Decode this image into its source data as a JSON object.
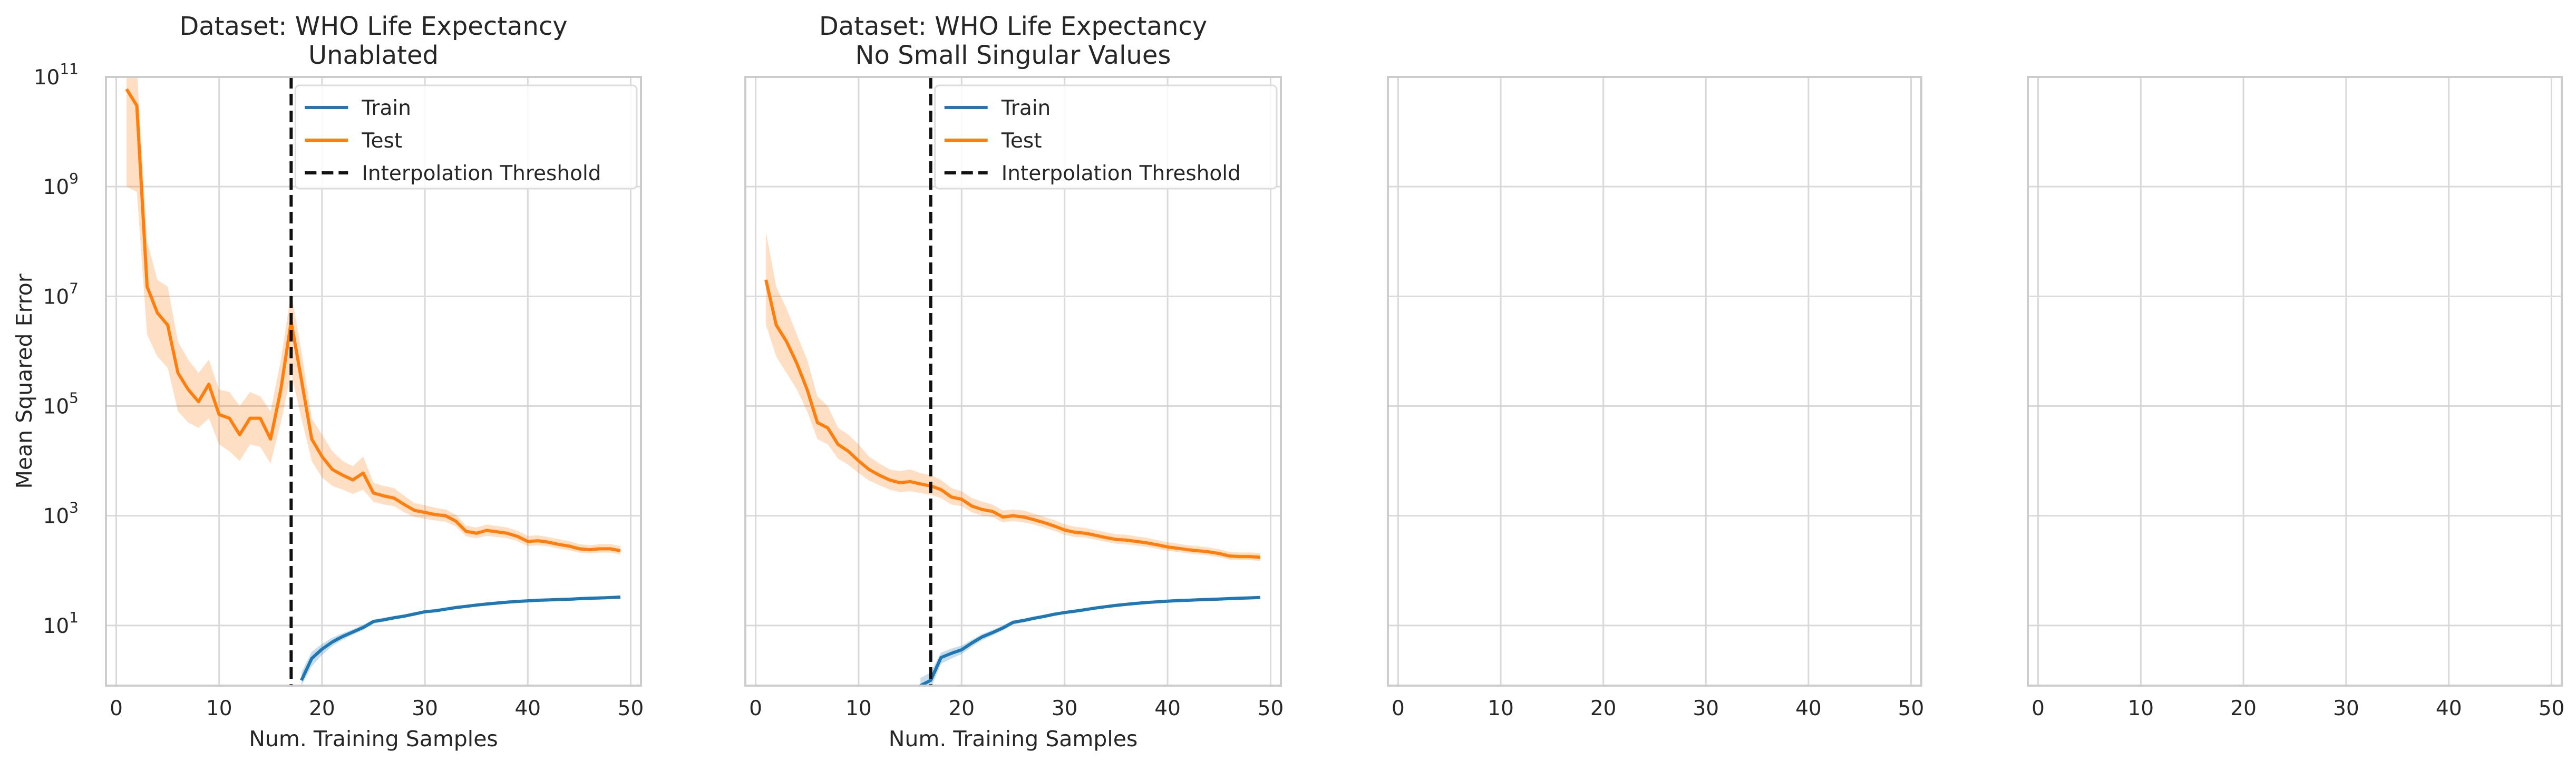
{
  "chart_data": [
    {
      "type": "line",
      "title": "Dataset: WHO Life Expectancy",
      "subtitle": "Unablated",
      "xlabel": "Num. Training Samples",
      "ylabel": "Mean Squared Error",
      "yscale": "log",
      "xlim": [
        -1,
        51
      ],
      "ylim": [
        0.8,
        100000000000
      ],
      "xticks": [
        "0",
        "10",
        "20",
        "30",
        "40",
        "50"
      ],
      "yticks": [
        {
          "base": "10",
          "exp": "1"
        },
        {
          "base": "10",
          "exp": "3"
        },
        {
          "base": "10",
          "exp": "5"
        },
        {
          "base": "10",
          "exp": "7"
        },
        {
          "base": "10",
          "exp": "9"
        },
        {
          "base": "10",
          "exp": "11"
        }
      ],
      "grid": true,
      "legend_position": "upper-right",
      "legend": [
        "Train",
        "Test",
        "Interpolation Threshold"
      ],
      "interpolation_threshold": 17,
      "series": [
        {
          "name": "Train",
          "color": "#1f77b4",
          "x": [
            18,
            19,
            20,
            21,
            22,
            23,
            24,
            25,
            26,
            27,
            28,
            29,
            30,
            31,
            32,
            33,
            34,
            35,
            36,
            37,
            38,
            39,
            40,
            41,
            42,
            43,
            44,
            45,
            46,
            47,
            48,
            49
          ],
          "y": [
            1.0,
            2.5,
            3.7,
            5.0,
            6.3,
            7.6,
            9.2,
            11.8,
            12.7,
            13.8,
            14.8,
            16.2,
            17.8,
            18.5,
            19.8,
            21.2,
            22.3,
            23.5,
            24.6,
            25.6,
            26.6,
            27.4,
            28.1,
            28.8,
            29.2,
            29.7,
            30.0,
            30.8,
            31.3,
            31.7,
            32.3,
            32.9
          ],
          "ci_low": [
            0.8,
            1.8,
            2.9,
            4.2,
            5.5,
            6.8,
            8.2,
            10.8,
            11.7,
            12.8,
            13.8,
            15.2,
            16.8,
            17.5,
            18.8,
            20.2,
            21.3,
            22.5,
            23.6,
            24.6,
            25.6,
            26.4,
            27.1,
            27.8,
            28.2,
            28.7,
            29.0,
            29.8,
            30.3,
            30.7,
            31.3,
            31.9
          ],
          "ci_high": [
            1.4,
            3.3,
            4.6,
            6.0,
            7.2,
            8.5,
            10.3,
            12.8,
            13.8,
            14.9,
            15.9,
            17.3,
            18.9,
            19.6,
            20.9,
            22.3,
            23.4,
            24.6,
            25.7,
            26.7,
            27.7,
            28.5,
            29.2,
            29.9,
            30.3,
            30.8,
            31.1,
            31.9,
            32.4,
            32.8,
            33.4,
            34.0
          ]
        },
        {
          "name": "Test",
          "color": "#ff7f0e",
          "x": [
            1,
            2,
            3,
            4,
            5,
            6,
            7,
            8,
            9,
            10,
            11,
            12,
            13,
            14,
            15,
            16,
            17,
            18,
            19,
            20,
            21,
            22,
            23,
            24,
            25,
            26,
            27,
            28,
            29,
            30,
            31,
            32,
            33,
            34,
            35,
            36,
            37,
            38,
            39,
            40,
            41,
            42,
            43,
            44,
            45,
            46,
            47,
            48,
            49
          ],
          "y": [
            60000000000,
            30000000000,
            15000000,
            5000000,
            3000000,
            400000,
            200000,
            120000,
            250000,
            70000,
            60000,
            30000,
            60000,
            60000,
            25000,
            200000,
            3500000,
            300000,
            25000,
            12000,
            7000,
            5500,
            4500,
            6000,
            2600,
            2300,
            2100,
            1600,
            1250,
            1150,
            1050,
            1000,
            800,
            520,
            480,
            540,
            510,
            480,
            420,
            340,
            350,
            330,
            300,
            280,
            250,
            240,
            250,
            250,
            230
          ],
          "ci_low": [
            1000000000,
            800000000,
            2000000,
            800000,
            500000,
            80000,
            50000,
            40000,
            60000,
            20000,
            15000,
            10000,
            20000,
            18000,
            9000,
            50000,
            400000,
            60000,
            10000,
            5000,
            3500,
            3000,
            2500,
            3000,
            1800,
            1600,
            1500,
            1150,
            950,
            880,
            820,
            780,
            640,
            420,
            390,
            430,
            410,
            390,
            345,
            280,
            290,
            275,
            252,
            235,
            212,
            205,
            212,
            212,
            196
          ],
          "ci_high": [
            200000000000,
            150000000000,
            100000000,
            20000000,
            15000000,
            1500000,
            700000,
            400000,
            700000,
            200000,
            180000,
            100000,
            180000,
            150000,
            80000,
            700000,
            12000000,
            1000000,
            60000,
            30000,
            15000,
            10000,
            8000,
            12000,
            4000,
            3500,
            3200,
            2300,
            1700,
            1550,
            1400,
            1300,
            1050,
            660,
            610,
            690,
            650,
            610,
            530,
            430,
            440,
            410,
            375,
            345,
            305,
            290,
            305,
            305,
            280
          ]
        }
      ]
    },
    {
      "type": "line",
      "title": "Dataset: WHO Life Expectancy",
      "subtitle": "No Small Singular Values",
      "xlabel": "Num. Training Samples",
      "ylabel": "",
      "yscale": "log",
      "xlim": [
        -1,
        51
      ],
      "ylim": [
        0.8,
        100000000000
      ],
      "xticks": [
        "0",
        "10",
        "20",
        "30",
        "40",
        "50"
      ],
      "grid": true,
      "legend_position": "upper-right",
      "legend": [
        "Train",
        "Test",
        "Interpolation Threshold"
      ],
      "interpolation_threshold": 17,
      "series": [
        {
          "name": "Train",
          "color": "#1f77b4",
          "x": [
            16,
            17,
            18,
            19,
            20,
            21,
            22,
            23,
            24,
            25,
            26,
            27,
            28,
            29,
            30,
            31,
            32,
            33,
            34,
            35,
            36,
            37,
            38,
            39,
            40,
            41,
            42,
            43,
            44,
            45,
            46,
            47,
            48,
            49
          ],
          "y": [
            0.8,
            1.0,
            2.6,
            3.1,
            3.6,
            4.8,
            6.2,
            7.4,
            9.0,
            11.4,
            12.3,
            13.5,
            14.6,
            16.0,
            17.2,
            18.2,
            19.4,
            20.8,
            22.0,
            23.2,
            24.3,
            25.3,
            26.2,
            27.0,
            27.7,
            28.4,
            28.8,
            29.4,
            29.8,
            30.3,
            30.9,
            31.4,
            31.8,
            32.4
          ],
          "ci_low": [
            0.6,
            0.7,
            2.0,
            2.5,
            3.0,
            4.1,
            5.4,
            6.6,
            8.1,
            10.4,
            11.3,
            12.5,
            13.6,
            15.0,
            16.2,
            17.2,
            18.4,
            19.8,
            21.0,
            22.2,
            23.3,
            24.3,
            25.2,
            26.0,
            26.7,
            27.4,
            27.8,
            28.4,
            28.8,
            29.3,
            29.9,
            30.4,
            30.8,
            31.4
          ],
          "ci_high": [
            1.1,
            1.4,
            3.2,
            3.8,
            4.3,
            5.5,
            7.0,
            8.3,
            10.0,
            12.4,
            13.3,
            14.6,
            15.7,
            17.1,
            18.3,
            19.3,
            20.5,
            21.9,
            23.1,
            24.3,
            25.4,
            26.4,
            27.3,
            28.1,
            28.8,
            29.5,
            29.9,
            30.5,
            30.9,
            31.4,
            32.0,
            32.5,
            32.9,
            33.5
          ]
        },
        {
          "name": "Test",
          "color": "#ff7f0e",
          "x": [
            1,
            2,
            3,
            4,
            5,
            6,
            7,
            8,
            9,
            10,
            11,
            12,
            13,
            14,
            15,
            16,
            17,
            18,
            19,
            20,
            21,
            22,
            23,
            24,
            25,
            26,
            27,
            28,
            29,
            30,
            31,
            32,
            33,
            34,
            35,
            36,
            37,
            38,
            39,
            40,
            41,
            42,
            43,
            44,
            45,
            46,
            47,
            48,
            49
          ],
          "y": [
            20000000,
            3000000,
            1500000,
            600000,
            200000,
            50000,
            40000,
            20000,
            15000,
            10000,
            7000,
            5500,
            4500,
            4000,
            4200,
            3800,
            3500,
            3000,
            2200,
            2000,
            1500,
            1300,
            1200,
            950,
            1000,
            950,
            850,
            750,
            650,
            550,
            500,
            480,
            440,
            400,
            370,
            360,
            340,
            320,
            295,
            270,
            255,
            240,
            230,
            220,
            205,
            185,
            180,
            180,
            175
          ],
          "ci_low": [
            3000000,
            800000,
            400000,
            200000,
            80000,
            25000,
            20000,
            11000,
            8500,
            6000,
            4400,
            3600,
            3000,
            2700,
            2800,
            2600,
            2400,
            2100,
            1600,
            1500,
            1150,
            1000,
            950,
            760,
            800,
            760,
            690,
            610,
            530,
            450,
            410,
            400,
            365,
            335,
            310,
            300,
            285,
            270,
            250,
            230,
            218,
            205,
            197,
            188,
            176,
            159,
            155,
            155,
            150
          ],
          "ci_high": [
            150000000,
            15000000,
            6000000,
            2000000,
            700000,
            150000,
            100000,
            40000,
            30000,
            20000,
            12000,
            9000,
            7000,
            6500,
            7000,
            6000,
            5500,
            4500,
            3200,
            2800,
            2100,
            1800,
            1600,
            1250,
            1300,
            1250,
            1100,
            960,
            830,
            700,
            630,
            600,
            550,
            500,
            460,
            450,
            420,
            395,
            360,
            330,
            310,
            290,
            278,
            265,
            245,
            220,
            214,
            214,
            208
          ]
        }
      ]
    },
    {
      "type": "line",
      "title": "",
      "xlabel": "",
      "ylabel": "",
      "yscale": "log",
      "xlim": [
        -1,
        51
      ],
      "ylim": [
        0.8,
        100000000000
      ],
      "xticks": [
        "0",
        "10",
        "20",
        "30",
        "40",
        "50"
      ],
      "grid": true,
      "series": []
    },
    {
      "type": "line",
      "title": "",
      "xlabel": "",
      "ylabel": "",
      "yscale": "log",
      "xlim": [
        -1,
        51
      ],
      "ylim": [
        0.8,
        100000000000
      ],
      "xticks": [
        "0",
        "10",
        "20",
        "30",
        "40",
        "50"
      ],
      "grid": true,
      "series": []
    }
  ]
}
